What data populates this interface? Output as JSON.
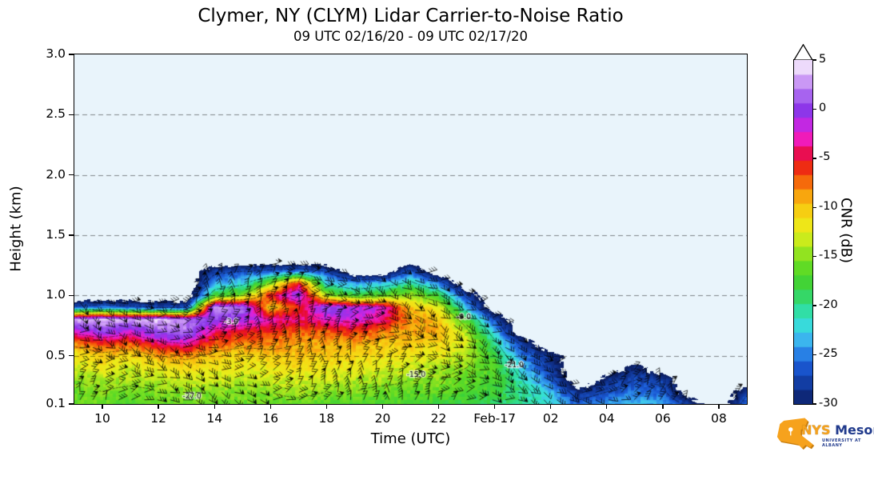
{
  "title": "Clymer, NY (CLYM) Lidar Carrier-to-Noise Ratio",
  "subtitle": "09 UTC 02/16/20 - 09 UTC 02/17/20",
  "axes": {
    "x_label": "Time (UTC)",
    "y_label": "Height (km)",
    "x_range_hours": [
      9,
      33
    ],
    "y_range_km": [
      0.1,
      3.0
    ],
    "x_ticks": [
      {
        "t": 10,
        "label": "10"
      },
      {
        "t": 12,
        "label": "12"
      },
      {
        "t": 14,
        "label": "14"
      },
      {
        "t": 16,
        "label": "16"
      },
      {
        "t": 18,
        "label": "18"
      },
      {
        "t": 20,
        "label": "20"
      },
      {
        "t": 22,
        "label": "22"
      },
      {
        "t": 24,
        "label": "Feb-17"
      },
      {
        "t": 26,
        "label": "02"
      },
      {
        "t": 28,
        "label": "04"
      },
      {
        "t": 30,
        "label": "06"
      },
      {
        "t": 32,
        "label": "08"
      }
    ],
    "y_ticks": [
      {
        "v": 3.0,
        "label": "3.0"
      },
      {
        "v": 2.5,
        "label": "2.5"
      },
      {
        "v": 2.0,
        "label": "2.0"
      },
      {
        "v": 1.5,
        "label": "1.5"
      },
      {
        "v": 1.0,
        "label": "1.0"
      },
      {
        "v": 0.5,
        "label": "0.5"
      },
      {
        "v": 0.1,
        "label": "0.1"
      }
    ]
  },
  "colorbar": {
    "label": "CNR (dB)",
    "min": -30,
    "max": 5,
    "segments": 24,
    "over_arrow_color": "#ffffff",
    "ticks": [
      {
        "v": 5,
        "label": "5"
      },
      {
        "v": 0,
        "label": "0"
      },
      {
        "v": -5,
        "label": "-5"
      },
      {
        "v": -10,
        "label": "-10"
      },
      {
        "v": -15,
        "label": "-15"
      },
      {
        "v": -20,
        "label": "-20"
      },
      {
        "v": -25,
        "label": "-25"
      },
      {
        "v": -30,
        "label": "-30"
      }
    ],
    "stops": [
      [
        -30,
        "#0c1f63"
      ],
      [
        -28,
        "#123a9e"
      ],
      [
        -26,
        "#1b5ad6"
      ],
      [
        -24.5,
        "#2e8eeb"
      ],
      [
        -23,
        "#41c6f0"
      ],
      [
        -21.5,
        "#35e4d2"
      ],
      [
        -20,
        "#30dc8f"
      ],
      [
        -18,
        "#3bd23b"
      ],
      [
        -16,
        "#63dc24"
      ],
      [
        -14,
        "#abe71f"
      ],
      [
        -12.5,
        "#e8ef1b"
      ],
      [
        -11,
        "#f6dd15"
      ],
      [
        -9.5,
        "#f8bd10"
      ],
      [
        -8,
        "#f8880d"
      ],
      [
        -6.5,
        "#f3400a"
      ],
      [
        -5,
        "#e60d22"
      ],
      [
        -4,
        "#ec0f7e"
      ],
      [
        -3,
        "#f11cbb"
      ],
      [
        -2,
        "#d925de"
      ],
      [
        -1,
        "#a62ee8"
      ],
      [
        0,
        "#8b38ea"
      ],
      [
        1.5,
        "#ab68f0"
      ],
      [
        3,
        "#cf9ff6"
      ],
      [
        4.2,
        "#ecd7fb"
      ],
      [
        5,
        "#ffffff"
      ]
    ]
  },
  "chart_data": {
    "type": "heatmap",
    "title": "Clymer, NY (CLYM) Lidar Carrier-to-Noise Ratio",
    "subtitle": "09 UTC 02/16/20 - 09 UTC 02/17/20",
    "xlabel": "Time (UTC)",
    "ylabel": "Height (km)",
    "units": "dB",
    "background_color": "#e9f4fb",
    "x_hours_utc": [
      9,
      10,
      11,
      12,
      13,
      14,
      15,
      16,
      17,
      18,
      19,
      20,
      21,
      22,
      23,
      24,
      25,
      26,
      27,
      28,
      29,
      30,
      31,
      32,
      33
    ],
    "heights_km": [
      0.1,
      0.2,
      0.3,
      0.4,
      0.5,
      0.6,
      0.7,
      0.8,
      0.9,
      1.0,
      1.1,
      1.2,
      1.3
    ],
    "no_data_value": null,
    "cnr_grid_by_height": [
      [
        -16,
        -16,
        -17,
        -16,
        -16,
        -16,
        -16,
        -16,
        -16,
        -17,
        -17,
        -17,
        -17,
        -18,
        -18,
        -19,
        -20,
        -22,
        -26,
        -24,
        -23,
        -24,
        -28,
        null,
        -25
      ],
      [
        -16,
        -15,
        -16,
        -15,
        -15,
        -15,
        -15,
        -15,
        -14,
        -15,
        -15,
        -16,
        -16,
        -16,
        -17,
        -18,
        -20,
        -23,
        -29,
        -27,
        -25,
        -26,
        null,
        null,
        -28
      ],
      [
        -15,
        -14,
        -14,
        -14,
        -13,
        -13,
        -14,
        -13,
        -13,
        -13,
        -14,
        -14,
        -15,
        -15,
        -16,
        -17,
        -21,
        -26,
        null,
        -29,
        -27,
        -28,
        null,
        null,
        null
      ],
      [
        -13,
        -12,
        -13,
        -12,
        -11,
        -12,
        -12,
        -12,
        -11,
        -12,
        -12,
        -13,
        -13,
        -14,
        -15,
        -17,
        -23,
        -28,
        null,
        null,
        -29,
        null,
        null,
        null,
        null
      ],
      [
        -12,
        -10,
        -11,
        -9,
        -8,
        -10,
        -11,
        -10,
        -10,
        -10,
        -11,
        -11,
        -12,
        -12,
        -14,
        -18,
        -25,
        -29,
        null,
        null,
        null,
        null,
        null,
        null,
        null
      ],
      [
        -8,
        -6,
        -7,
        -4,
        -3,
        -7,
        -8,
        -8,
        -9,
        -9,
        -9,
        -10,
        -10,
        -11,
        -13,
        -20,
        -28,
        null,
        null,
        null,
        null,
        null,
        null,
        null,
        null
      ],
      [
        -2,
        0,
        -2,
        1,
        2,
        -4,
        -5,
        -6,
        -7,
        -7,
        -6,
        -8,
        -9,
        -9,
        -14,
        -23,
        null,
        null,
        null,
        null,
        null,
        null,
        null,
        null,
        null
      ],
      [
        3,
        4,
        3,
        4,
        2,
        0,
        -1,
        -3,
        -4,
        -3,
        -2,
        -4,
        -8,
        -10,
        -17,
        -27,
        null,
        null,
        null,
        null,
        null,
        null,
        null,
        null,
        null
      ],
      [
        -26,
        -25,
        -26,
        -27,
        -27,
        3,
        2,
        -10,
        -6,
        1,
        -1,
        -2,
        -10,
        -12,
        -23,
        null,
        null,
        null,
        null,
        null,
        null,
        null,
        null,
        null,
        null
      ],
      [
        null,
        null,
        null,
        null,
        null,
        -18,
        -15,
        -5,
        0,
        -14,
        -18,
        -16,
        -14,
        -18,
        -28,
        null,
        null,
        null,
        null,
        null,
        null,
        null,
        null,
        null,
        null
      ],
      [
        null,
        null,
        null,
        null,
        null,
        -24,
        -22,
        -15,
        -5,
        -22,
        -24,
        -23,
        -20,
        -25,
        null,
        null,
        null,
        null,
        null,
        null,
        null,
        null,
        null,
        null,
        null
      ],
      [
        null,
        null,
        null,
        null,
        null,
        -28,
        -27,
        -26,
        -25,
        -27,
        null,
        null,
        -26,
        null,
        null,
        null,
        null,
        null,
        null,
        null,
        null,
        null,
        null,
        null,
        null
      ],
      [
        null,
        null,
        null,
        null,
        null,
        null,
        null,
        null,
        null,
        null,
        null,
        null,
        null,
        null,
        null,
        null,
        null,
        null,
        null,
        null,
        null,
        null,
        null,
        null,
        null
      ]
    ],
    "contour_levels": [
      -27,
      -21,
      -15,
      -9,
      -3
    ],
    "contour_labels": [
      {
        "text": "-27.0",
        "t": 13.2,
        "h": 0.16
      },
      {
        "text": "-21.0",
        "t": 24.7,
        "h": 0.42
      },
      {
        "text": "-15.0",
        "t": 21.2,
        "h": 0.34
      },
      {
        "text": "-9.0",
        "t": 22.9,
        "h": 0.82
      },
      {
        "text": "-3.0",
        "t": 14.6,
        "h": 0.78
      }
    ],
    "wind_barbs_overlay": true
  },
  "logo": {
    "nys": "NYS",
    "mesonet": "Mesonet",
    "tagline": "UNIVERSITY AT ALBANY",
    "orange": "#f6a21d",
    "blue": "#203a8c"
  }
}
